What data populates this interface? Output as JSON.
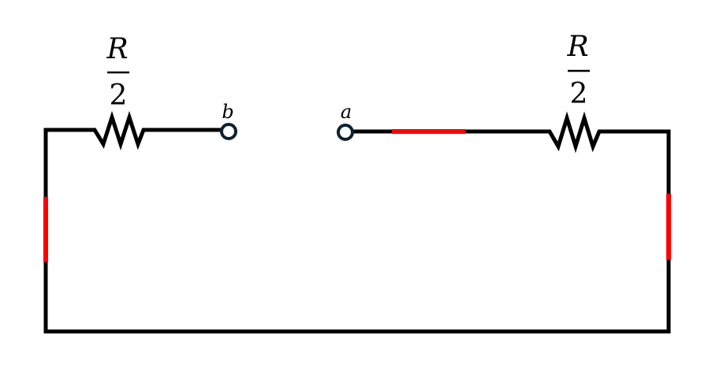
{
  "resistors": [
    {
      "numerator": "R",
      "denominator": "2"
    },
    {
      "numerator": "R",
      "denominator": "2"
    }
  ],
  "terminals": {
    "b": "b",
    "a": "a"
  },
  "colors": {
    "wire": "#000000",
    "highlight": "#ff0000",
    "terminal": "#0d2230"
  }
}
